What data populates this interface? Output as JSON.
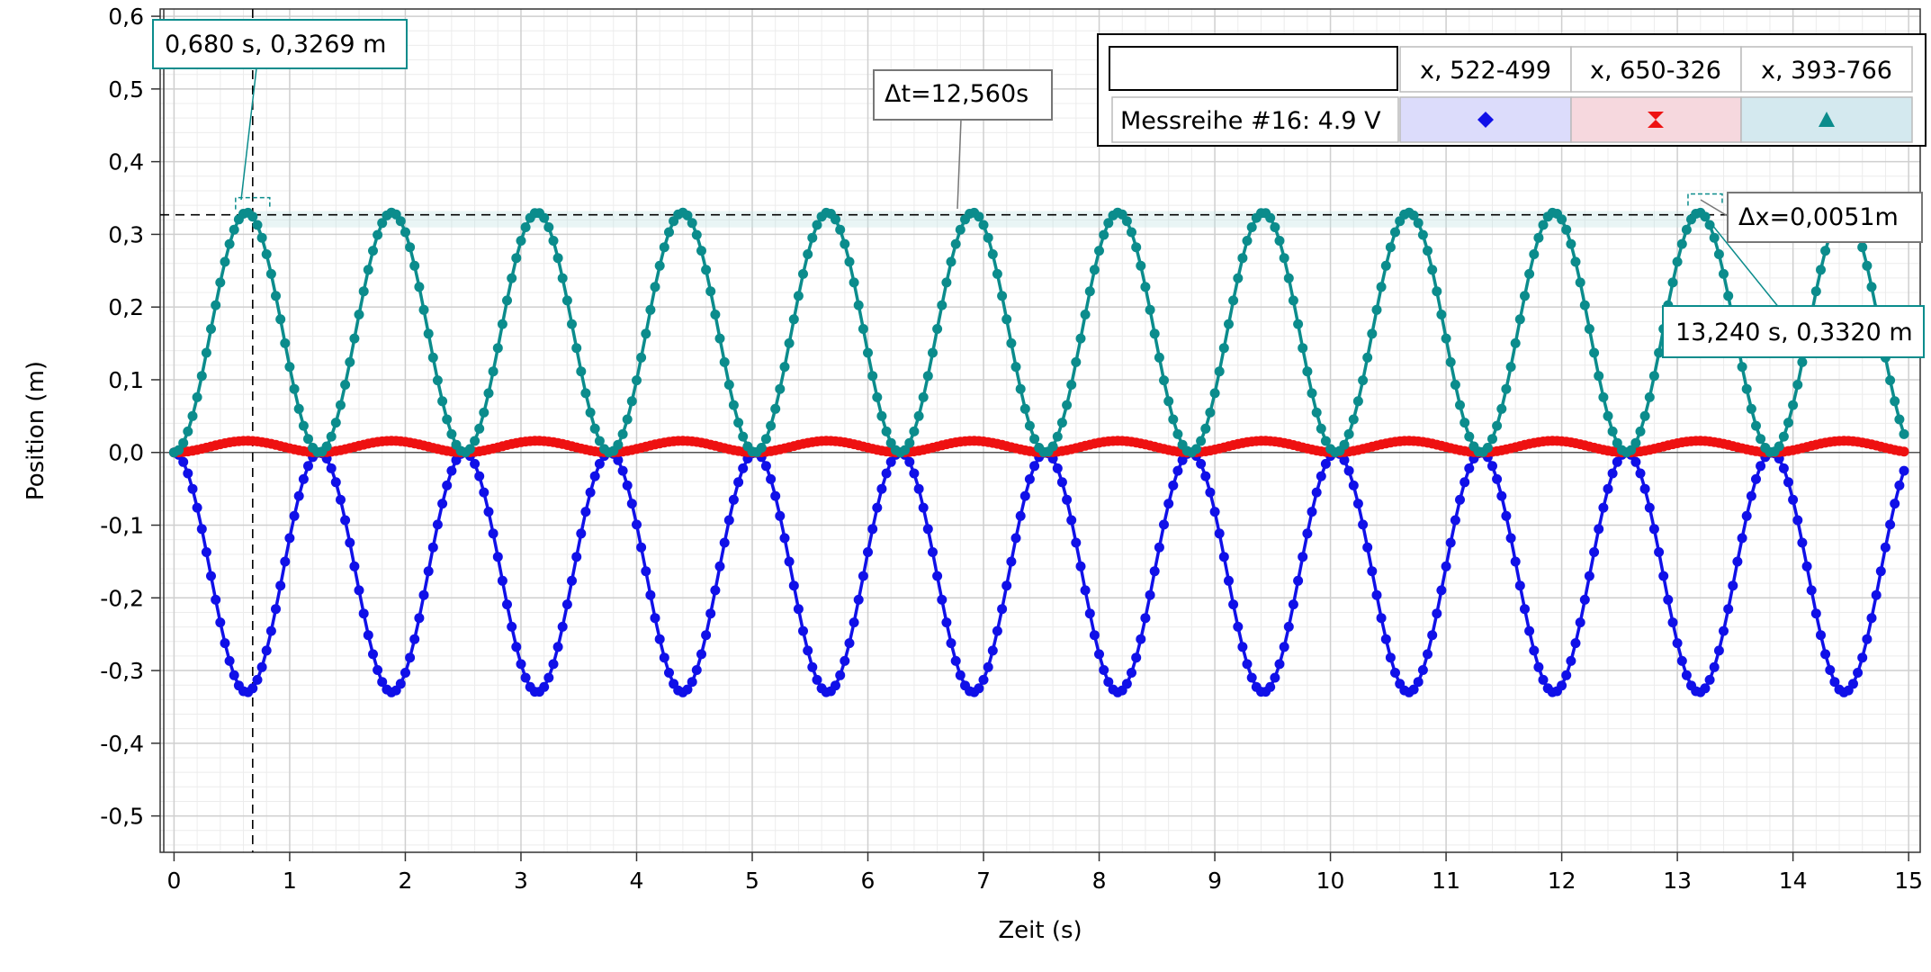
{
  "colors": {
    "series_blue": "#1010e8",
    "series_red": "#ee1111",
    "series_teal": "#0b8c8c",
    "grid_major": "#cfcfcf",
    "grid_minor": "#ececec"
  },
  "chart_data": {
    "type": "scatter",
    "xlabel": "Zeit (s)",
    "ylabel": "Position (m)",
    "xlim": [
      -0.12,
      15.1
    ],
    "ylim": [
      -0.55,
      0.61
    ],
    "x_ticks": [
      0,
      1,
      2,
      3,
      4,
      5,
      6,
      7,
      8,
      9,
      10,
      11,
      12,
      13,
      14,
      15
    ],
    "x_tick_labels": [
      "0",
      "1",
      "2",
      "3",
      "4",
      "5",
      "6",
      "7",
      "8",
      "9",
      "10",
      "11",
      "12",
      "13",
      "14",
      "15"
    ],
    "y_ticks": [
      -0.5,
      -0.4,
      -0.3,
      -0.2,
      -0.1,
      0.0,
      0.1,
      0.2,
      0.3,
      0.4,
      0.5,
      0.6
    ],
    "y_tick_labels": [
      "-0,5",
      "-0,4",
      "-0,3",
      "-0,2",
      "-0,1",
      "0,0",
      "0,1",
      "0,2",
      "0,3",
      "0,4",
      "0,5",
      "0,6"
    ],
    "grid": true,
    "sample_interval_s": 0.04,
    "period_s": 1.256,
    "series": [
      {
        "name": "x, 522-499",
        "marker": "diamond",
        "amplitude_m": -0.33,
        "offset_m": 0.0,
        "period_s": 1.256,
        "t_range_s": [
          0,
          14.96
        ]
      },
      {
        "name": "x, 650-326",
        "marker": "hourglass",
        "amplitude_m": 0.016,
        "offset_m": 0.0,
        "period_s": 1.256,
        "t_range_s": [
          0,
          14.96
        ]
      },
      {
        "name": "x, 393-766",
        "marker": "triangle",
        "amplitude_m": 0.33,
        "offset_m": 0.0,
        "period_s": 1.256,
        "t_range_s": [
          0,
          14.96
        ]
      }
    ],
    "legend": {
      "placement": "top-right",
      "title": "Messreihe #16: 4.9 V",
      "header_empty": ""
    },
    "annotations": {
      "point_a": {
        "label": "0,680 s, 0,3269 m",
        "x": 0.68,
        "y": 0.3269
      },
      "point_b": {
        "label": "13,240 s, 0,3320 m",
        "x": 13.24,
        "y": 0.332
      },
      "delta_t": {
        "label": "Δt=12,560s"
      },
      "delta_x": {
        "label": "Δx=0,0051m"
      }
    }
  }
}
